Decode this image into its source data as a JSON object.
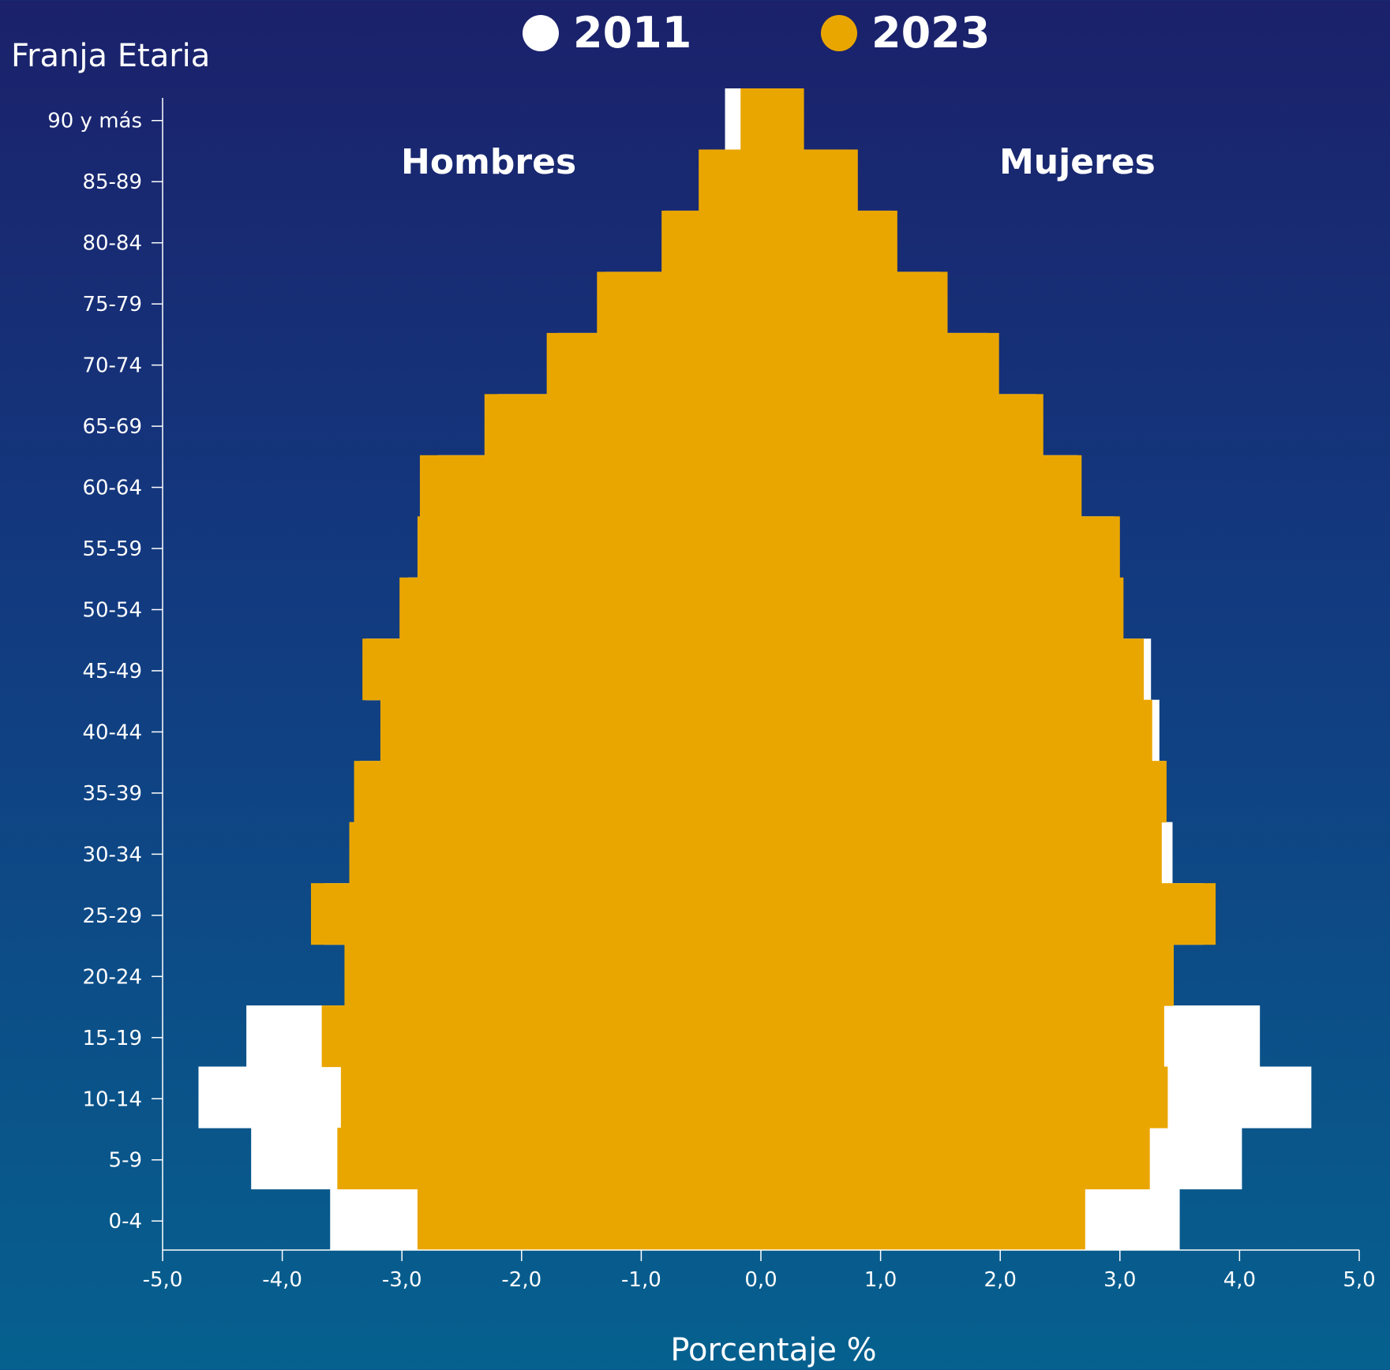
{
  "chart_data": {
    "type": "bar",
    "orientation": "horizontal",
    "title": "Franja Etaria",
    "xlabel": "Porcentaje %",
    "xlim": [
      -5,
      5
    ],
    "xticks": [
      "-5,0",
      "-4,0",
      "-3,0",
      "-2,0",
      "-1,0",
      "0,0",
      "1,0",
      "2,0",
      "3,0",
      "4,0",
      "5,0"
    ],
    "categories": [
      "90 y más",
      "85-89",
      "80-84",
      "75-79",
      "70-74",
      "65-69",
      "60-64",
      "55-59",
      "50-54",
      "45-49",
      "40-44",
      "35-39",
      "30-34",
      "25-29",
      "20-24",
      "15-19",
      "10-14",
      "5-9",
      "0-4"
    ],
    "annotations": {
      "left": "Hombres",
      "right": "Mujeres"
    },
    "legend": "top-center",
    "series": [
      {
        "name": "2011",
        "color": "#ffffff",
        "hombres": [
          0.3,
          0.45,
          0.8,
          1.3,
          1.7,
          2.2,
          2.7,
          2.8,
          2.95,
          3.3,
          3.15,
          3.35,
          3.4,
          3.65,
          3.45,
          4.3,
          4.7,
          4.26,
          3.6
        ],
        "mujeres": [
          0.3,
          0.75,
          1.1,
          1.5,
          1.9,
          2.3,
          2.65,
          2.95,
          3.0,
          3.26,
          3.33,
          3.38,
          3.44,
          3.7,
          3.4,
          4.17,
          4.6,
          4.02,
          3.5
        ]
      },
      {
        "name": "2023",
        "color": "#eaa600",
        "hombres": [
          0.17,
          0.52,
          0.83,
          1.37,
          1.79,
          2.31,
          2.85,
          2.87,
          3.02,
          3.33,
          3.18,
          3.4,
          3.44,
          3.76,
          3.48,
          3.67,
          3.51,
          3.54,
          2.87
        ],
        "mujeres": [
          0.36,
          0.81,
          1.14,
          1.56,
          1.99,
          2.36,
          2.68,
          3.0,
          3.03,
          3.2,
          3.27,
          3.39,
          3.35,
          3.8,
          3.45,
          3.37,
          3.4,
          3.25,
          2.71
        ]
      }
    ]
  }
}
